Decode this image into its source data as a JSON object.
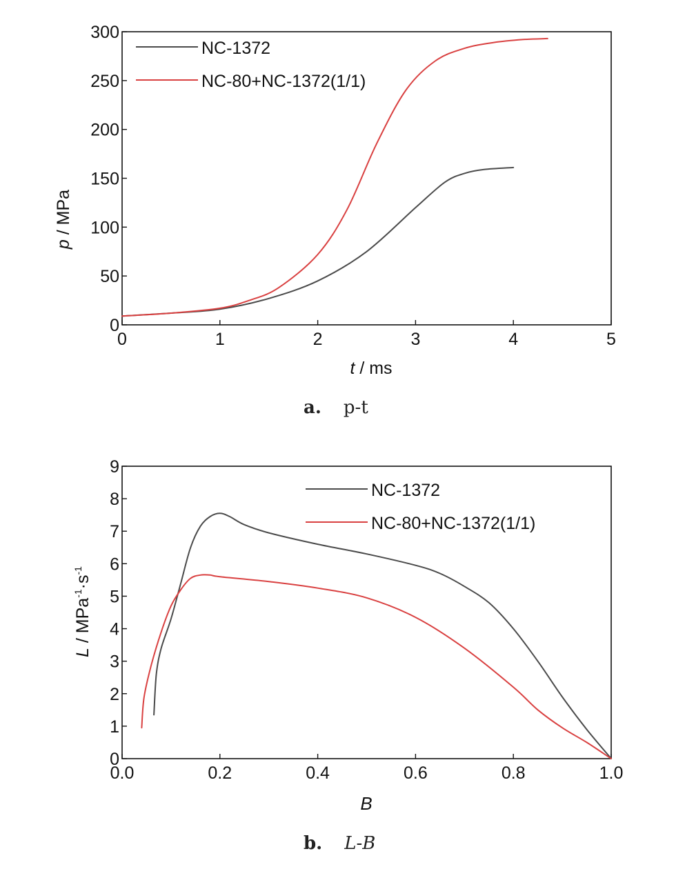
{
  "captions": {
    "a": {
      "letter": "a.",
      "text": "p-t"
    },
    "b": {
      "letter": "b.",
      "text_l": "L",
      "dash": "-",
      "text_b": "B"
    }
  },
  "chart_data": [
    {
      "type": "line",
      "ylabel_var": "p",
      "ylabel_unit": "MPa",
      "xlabel_var": "t",
      "xlabel_unit": "ms",
      "xlim": [
        0,
        5
      ],
      "ylim": [
        0,
        300
      ],
      "x_ticks": [
        "0",
        "1",
        "2",
        "3",
        "4",
        "5"
      ],
      "y_ticks": [
        "0",
        "50",
        "100",
        "150",
        "200",
        "250",
        "300"
      ],
      "legend_position": "top-left",
      "series": [
        {
          "name": "NC-1372",
          "color": "#4a4a4a",
          "x": [
            0,
            0.5,
            1.0,
            1.5,
            2.0,
            2.5,
            3.0,
            3.3,
            3.5,
            3.7,
            4.0
          ],
          "y": [
            9,
            12,
            16,
            27,
            45,
            75,
            120,
            146,
            155,
            159,
            161
          ]
        },
        {
          "name": "NC-80+NC-1372(1/1)",
          "color": "#d94040",
          "x": [
            0,
            0.5,
            1.0,
            1.3,
            1.6,
            2.0,
            2.3,
            2.6,
            2.9,
            3.2,
            3.5,
            3.8,
            4.1,
            4.35
          ],
          "y": [
            9,
            12,
            17,
            25,
            38,
            72,
            118,
            185,
            240,
            270,
            283,
            289,
            292,
            293
          ]
        }
      ]
    },
    {
      "type": "line",
      "ylabel_var": "L",
      "ylabel_unit": "MPa",
      "ylabel_sup1": "-1",
      "ylabel_dot": "·s",
      "ylabel_sup2": "-1",
      "xlabel": "B",
      "xlim": [
        0,
        1
      ],
      "ylim": [
        0,
        9
      ],
      "x_ticks": [
        "0.0",
        "0.2",
        "0.4",
        "0.6",
        "0.8",
        "1.0"
      ],
      "y_ticks": [
        "0",
        "1",
        "2",
        "3",
        "4",
        "5",
        "6",
        "7",
        "8",
        "9"
      ],
      "legend_position": "top-center",
      "series": [
        {
          "name": "NC-1372",
          "color": "#4a4a4a",
          "x": [
            0.065,
            0.07,
            0.08,
            0.1,
            0.12,
            0.14,
            0.16,
            0.18,
            0.2,
            0.22,
            0.25,
            0.3,
            0.4,
            0.5,
            0.6,
            0.65,
            0.7,
            0.75,
            0.8,
            0.85,
            0.9,
            0.95,
            1.0
          ],
          "y": [
            1.35,
            2.6,
            3.4,
            4.3,
            5.4,
            6.5,
            7.15,
            7.45,
            7.55,
            7.45,
            7.2,
            6.95,
            6.6,
            6.3,
            5.95,
            5.7,
            5.3,
            4.8,
            4.0,
            3.0,
            1.9,
            0.9,
            0.0
          ]
        },
        {
          "name": "NC-80+NC-1372(1/1)",
          "color": "#d94040",
          "x": [
            0.04,
            0.045,
            0.06,
            0.08,
            0.1,
            0.12,
            0.14,
            0.16,
            0.18,
            0.2,
            0.3,
            0.4,
            0.5,
            0.6,
            0.7,
            0.8,
            0.85,
            0.9,
            0.95,
            1.0
          ],
          "y": [
            0.95,
            1.9,
            2.9,
            3.9,
            4.7,
            5.2,
            5.55,
            5.65,
            5.65,
            5.6,
            5.45,
            5.25,
            4.95,
            4.35,
            3.4,
            2.2,
            1.5,
            0.95,
            0.5,
            0.0
          ]
        }
      ]
    }
  ]
}
